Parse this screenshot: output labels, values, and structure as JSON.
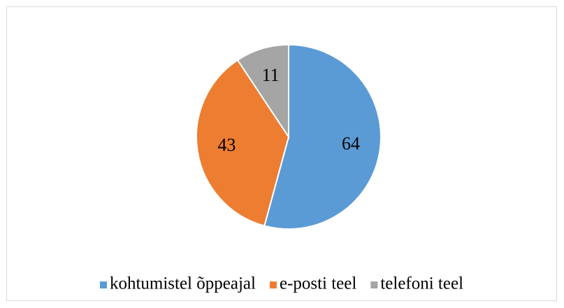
{
  "chart_data": {
    "type": "pie",
    "categories": [
      "kohtumistel õppeajal",
      "e-posti teel",
      "telefoni teel"
    ],
    "values": [
      64,
      43,
      11
    ],
    "colors": [
      "#5b9bd5",
      "#ed7d31",
      "#a5a5a5"
    ],
    "legend": "bottom"
  }
}
